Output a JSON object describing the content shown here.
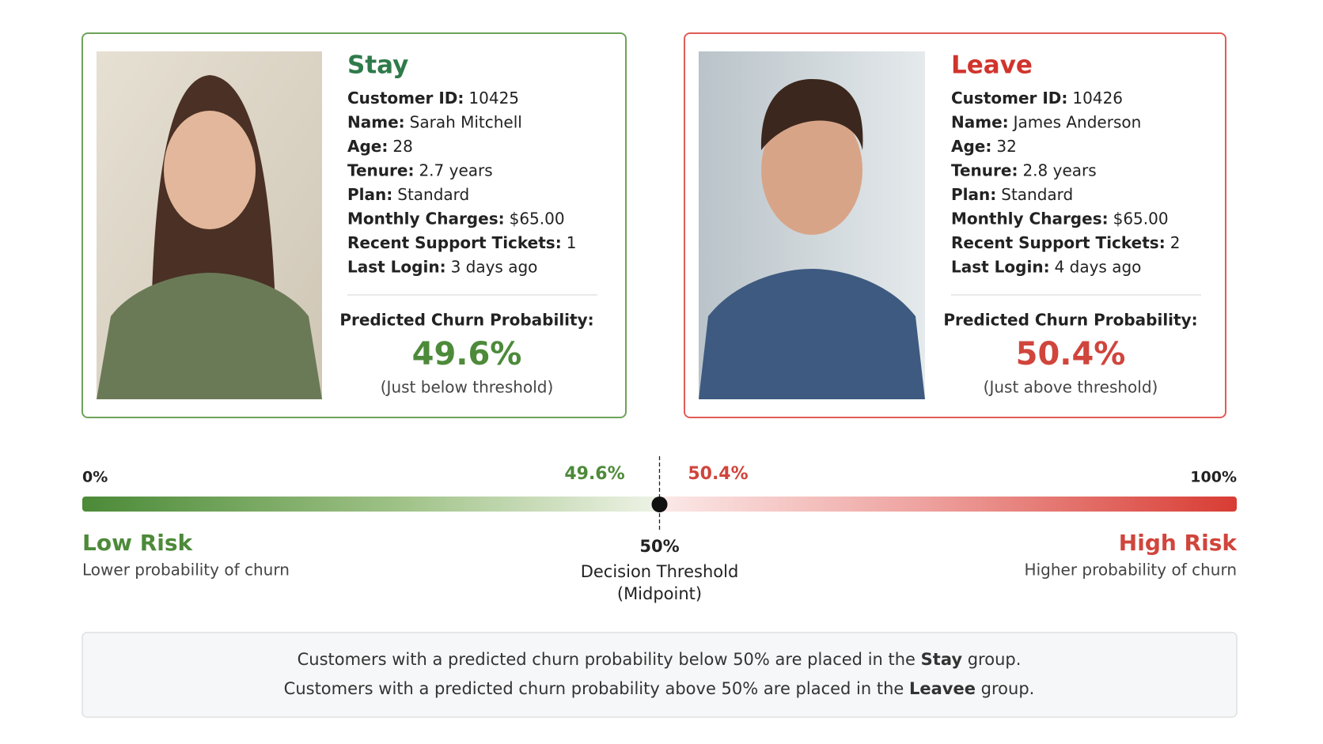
{
  "cards": [
    {
      "title": "Stay",
      "fields": [
        {
          "label": "Customer ID:",
          "value": "10425"
        },
        {
          "label": "Name:",
          "value": "Sarah Mitchell"
        },
        {
          "label": "Age:",
          "value": "28"
        },
        {
          "label": "Tenure:",
          "value": "2.7 years"
        },
        {
          "label": "Plan:",
          "value": "Standard"
        },
        {
          "label": "Monthly Charges:",
          "value": "$65.00"
        },
        {
          "label": "Recent Support Tickets:",
          "value": "1"
        },
        {
          "label": "Last Login:",
          "value": "3 days ago"
        }
      ],
      "probability_label": "Predicted Churn Probability:",
      "probability": "49.6%",
      "note": "(Just below threshold)"
    },
    {
      "title": "Leave",
      "fields": [
        {
          "label": "Customer ID:",
          "value": "10426"
        },
        {
          "label": "Name:",
          "value": "James Anderson"
        },
        {
          "label": "Age:",
          "value": "32"
        },
        {
          "label": "Tenure:",
          "value": "2.8 years"
        },
        {
          "label": "Plan:",
          "value": "Standard"
        },
        {
          "label": "Monthly Charges:",
          "value": "$65.00"
        },
        {
          "label": "Recent Support Tickets:",
          "value": "2"
        },
        {
          "label": "Last Login:",
          "value": "4 days ago"
        }
      ],
      "probability_label": "Predicted Churn Probability:",
      "probability": "50.4%",
      "note": "(Just above threshold)"
    }
  ],
  "scale": {
    "min": {
      "value": 0,
      "label": "0%"
    },
    "max": {
      "value": 100,
      "label": "100%"
    },
    "markers": [
      {
        "value": 49.6,
        "label": "49.6%"
      },
      {
        "value": 50.4,
        "label": "50.4%"
      }
    ],
    "threshold": {
      "value": 50,
      "label": "50%",
      "title": "Decision Threshold",
      "subtitle": "(Midpoint)"
    },
    "low": {
      "title": "Low Risk",
      "text": "Lower probability of churn"
    },
    "high": {
      "title": "High Risk",
      "text": "Higher probability of churn"
    }
  },
  "footer": [
    [
      "Customers with a predicted churn probability below 50% are placed in the ",
      "Stay",
      " group."
    ],
    [
      "Customers with a predicted churn probability above 50% are placed in the ",
      "Leavee",
      " group."
    ]
  ]
}
